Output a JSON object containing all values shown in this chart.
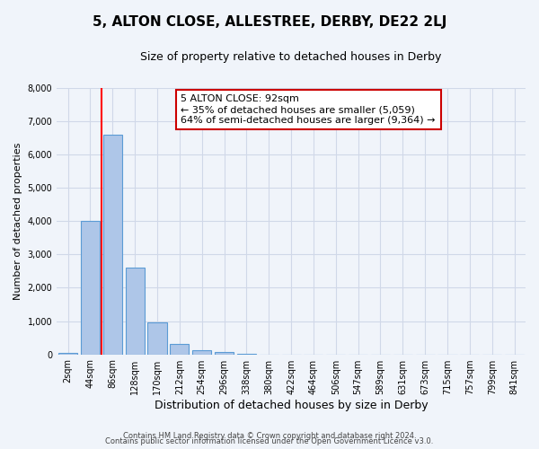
{
  "title": "5, ALTON CLOSE, ALLESTREE, DERBY, DE22 2LJ",
  "subtitle": "Size of property relative to detached houses in Derby",
  "xlabel": "Distribution of detached houses by size in Derby",
  "ylabel": "Number of detached properties",
  "bar_labels": [
    "2sqm",
    "44sqm",
    "86sqm",
    "128sqm",
    "170sqm",
    "212sqm",
    "254sqm",
    "296sqm",
    "338sqm",
    "380sqm",
    "422sqm",
    "464sqm",
    "506sqm",
    "547sqm",
    "589sqm",
    "631sqm",
    "673sqm",
    "715sqm",
    "757sqm",
    "799sqm",
    "841sqm"
  ],
  "bar_values": [
    50,
    4000,
    6600,
    2600,
    950,
    320,
    120,
    80,
    10,
    0,
    0,
    0,
    0,
    0,
    0,
    0,
    0,
    0,
    0,
    0,
    0
  ],
  "bar_color": "#aec6e8",
  "bar_edge_color": "#5b9bd5",
  "annotation_text": "5 ALTON CLOSE: 92sqm\n← 35% of detached houses are smaller (5,059)\n64% of semi-detached houses are larger (9,364) →",
  "annotation_box_color": "#ffffff",
  "annotation_box_edge_color": "#cc0000",
  "ylim": [
    0,
    8000
  ],
  "yticks": [
    0,
    1000,
    2000,
    3000,
    4000,
    5000,
    6000,
    7000,
    8000
  ],
  "grid_color": "#d0d8e8",
  "background_color": "#f0f4fa",
  "footer1": "Contains HM Land Registry data © Crown copyright and database right 2024.",
  "footer2": "Contains public sector information licensed under the Open Government Licence v3.0."
}
